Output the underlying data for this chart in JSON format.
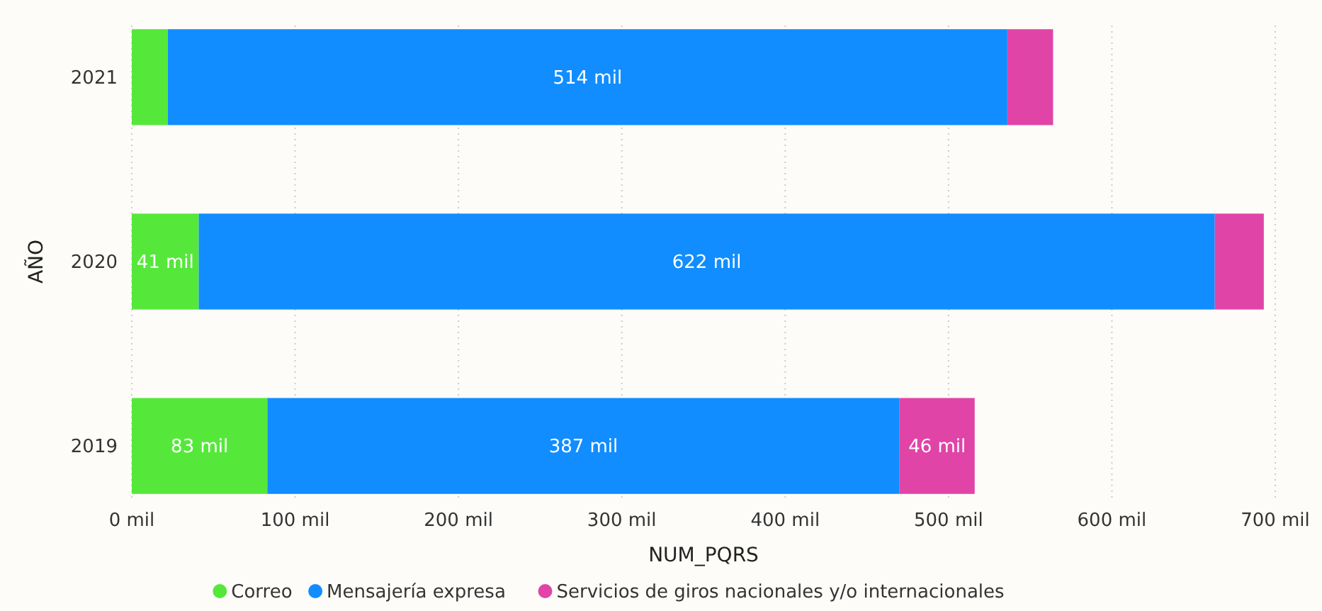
{
  "chart_data": {
    "type": "bar",
    "orientation": "horizontal",
    "stacked": true,
    "xlabel": "NUM_PQRS",
    "ylabel": "AÑO",
    "categories": [
      "2021",
      "2020",
      "2019"
    ],
    "series": [
      {
        "name": "Correo",
        "color": "#55e83a",
        "values": [
          22,
          41,
          83
        ],
        "value_labels": [
          null,
          "41 mil",
          "83 mil"
        ]
      },
      {
        "name": "Mensajería expresa",
        "color": "#118dff",
        "values": [
          514,
          622,
          387
        ],
        "value_labels": [
          "514 mil",
          "622 mil",
          "387 mil"
        ]
      },
      {
        "name": "Servicios de giros nacionales y/o internacionales",
        "color": "#e044a7",
        "values": [
          28,
          30,
          46
        ],
        "value_labels": [
          null,
          null,
          "46 mil"
        ]
      }
    ],
    "xlim": [
      0,
      700
    ],
    "xticks": [
      {
        "value": 0,
        "label": "0 mil"
      },
      {
        "value": 100,
        "label": "100 mil"
      },
      {
        "value": 200,
        "label": "200 mil"
      },
      {
        "value": 300,
        "label": "300 mil"
      },
      {
        "value": 400,
        "label": "400 mil"
      },
      {
        "value": 500,
        "label": "500 mil"
      },
      {
        "value": 600,
        "label": "600 mil"
      },
      {
        "value": 700,
        "label": "700 mil"
      }
    ],
    "grid": "x",
    "legend": "bottom"
  }
}
